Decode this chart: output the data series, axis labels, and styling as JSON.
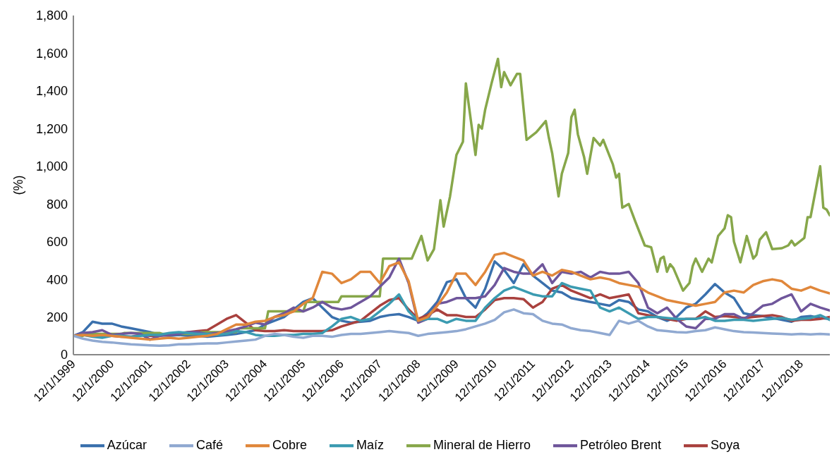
{
  "chart_data": {
    "type": "line",
    "ylabel": "(%)",
    "legend": "bottom",
    "marker": "none",
    "line_style": "solid",
    "xlim": [
      "1999-12",
      "2019-09"
    ],
    "xticks": [
      {
        "value": "1999-12-01",
        "label": "12/1/1999"
      },
      {
        "value": "2000-12-01",
        "label": "12/1/2000"
      },
      {
        "value": "2001-12-01",
        "label": "12/1/2001"
      },
      {
        "value": "2002-12-01",
        "label": "12/1/2002"
      },
      {
        "value": "2003-12-01",
        "label": "12/1/2003"
      },
      {
        "value": "2004-12-01",
        "label": "12/1/2004"
      },
      {
        "value": "2005-12-01",
        "label": "12/1/2005"
      },
      {
        "value": "2006-12-01",
        "label": "12/1/2006"
      },
      {
        "value": "2007-12-01",
        "label": "12/1/2007"
      },
      {
        "value": "2008-12-01",
        "label": "12/1/2008"
      },
      {
        "value": "2009-12-01",
        "label": "12/1/2009"
      },
      {
        "value": "2010-12-01",
        "label": "12/1/2010"
      },
      {
        "value": "2011-12-01",
        "label": "12/1/2011"
      },
      {
        "value": "2012-12-01",
        "label": "12/1/2012"
      },
      {
        "value": "2013-12-01",
        "label": "12/1/2013"
      },
      {
        "value": "2014-12-01",
        "label": "12/1/2014"
      },
      {
        "value": "2015-12-01",
        "label": "12/1/2015"
      },
      {
        "value": "2016-12-01",
        "label": "12/1/2016"
      },
      {
        "value": "2017-12-01",
        "label": "12/1/2017"
      },
      {
        "value": "2018-12-01",
        "label": "12/1/2018"
      }
    ],
    "ylim": [
      0,
      1800
    ],
    "yticks": [
      0,
      200,
      400,
      600,
      800,
      {
        "value": 1000,
        "label": "1,000"
      },
      {
        "value": 1200,
        "label": "1,200"
      },
      {
        "value": 1400,
        "label": "1,400"
      },
      {
        "value": 1600,
        "label": "1,600"
      },
      {
        "value": 1800,
        "label": "1,800"
      }
    ],
    "x": [
      "1999-12",
      "2000-03",
      "2000-06",
      "2000-09",
      "2000-12",
      "2001-03",
      "2001-06",
      "2001-09",
      "2001-12",
      "2002-03",
      "2002-06",
      "2002-09",
      "2002-12",
      "2003-03",
      "2003-06",
      "2003-09",
      "2003-12",
      "2004-03",
      "2004-06",
      "2004-09",
      "2004-12",
      "2005-03",
      "2005-06",
      "2005-09",
      "2005-12",
      "2006-03",
      "2006-06",
      "2006-09",
      "2006-12",
      "2007-03",
      "2007-06",
      "2007-09",
      "2007-12",
      "2008-03",
      "2008-06",
      "2008-09",
      "2008-12",
      "2009-03",
      "2009-06",
      "2009-09",
      "2009-12",
      "2010-03",
      "2010-06",
      "2010-09",
      "2010-12",
      "2011-03",
      "2011-06",
      "2011-09",
      "2011-12",
      "2012-03",
      "2012-06",
      "2012-09",
      "2012-12",
      "2013-03",
      "2013-06",
      "2013-09",
      "2013-12",
      "2014-03",
      "2014-06",
      "2014-09",
      "2014-12",
      "2015-03",
      "2015-06",
      "2015-09",
      "2015-12",
      "2016-03",
      "2016-06",
      "2016-09",
      "2016-12",
      "2017-03",
      "2017-06",
      "2017-09",
      "2017-12",
      "2018-03",
      "2018-06",
      "2018-09",
      "2018-12",
      "2019-03",
      "2019-06",
      "2019-09"
    ],
    "series": [
      {
        "name": "Azúcar",
        "color": "#3a70ad",
        "values": [
          100,
          120,
          175,
          165,
          165,
          150,
          140,
          130,
          120,
          105,
          100,
          105,
          100,
          100,
          95,
          100,
          105,
          110,
          120,
          130,
          160,
          180,
          200,
          240,
          280,
          300,
          250,
          200,
          180,
          170,
          175,
          180,
          200,
          210,
          215,
          200,
          180,
          220,
          280,
          385,
          400,
          300,
          250,
          350,
          495,
          450,
          380,
          480,
          420,
          380,
          340,
          330,
          300,
          290,
          280,
          270,
          260,
          290,
          280,
          240,
          230,
          200,
          180,
          200,
          250,
          270,
          320,
          375,
          330,
          300,
          220,
          210,
          205,
          195,
          185,
          175,
          200,
          205,
          195,
          190
        ]
      },
      {
        "name": "Soya",
        "color": "#a9413e",
        "values": [
          100,
          105,
          110,
          100,
          100,
          95,
          95,
          105,
          100,
          100,
          110,
          115,
          120,
          125,
          130,
          160,
          190,
          210,
          170,
          130,
          125,
          125,
          130,
          125,
          125,
          125,
          125,
          130,
          150,
          165,
          180,
          220,
          260,
          290,
          300,
          240,
          190,
          210,
          240,
          210,
          210,
          200,
          200,
          240,
          290,
          300,
          300,
          295,
          250,
          280,
          350,
          370,
          340,
          320,
          300,
          320,
          300,
          310,
          320,
          220,
          210,
          200,
          190,
          180,
          190,
          190,
          230,
          200,
          205,
          200,
          195,
          200,
          205,
          210,
          200,
          180,
          185,
          185,
          190,
          200
        ]
      },
      {
        "name": "Mineral de Hierro",
        "color": "#87a74a",
        "x": [
          "1999-12",
          "2000-03",
          "2000-04",
          "2001-03",
          "2001-04",
          "2002-03",
          "2002-04",
          "2003-03",
          "2003-04",
          "2004-03",
          "2004-04",
          "2004-12",
          "2005-01",
          "2005-12",
          "2006-01",
          "2006-11",
          "2006-12",
          "2007-12",
          "2008-01",
          "2008-10",
          "2008-12",
          "2009-01",
          "2009-03",
          "2009-05",
          "2009-07",
          "2009-08",
          "2009-10",
          "2009-12",
          "2010-02",
          "2010-03",
          "2010-06",
          "2010-07",
          "2010-08",
          "2010-09",
          "2010-11",
          "2011-01",
          "2011-02",
          "2011-03",
          "2011-05",
          "2011-07",
          "2011-08",
          "2011-10",
          "2012-01",
          "2012-04",
          "2012-05",
          "2012-06",
          "2012-08",
          "2012-09",
          "2012-11",
          "2012-12",
          "2013-01",
          "2013-02",
          "2013-04",
          "2013-05",
          "2013-07",
          "2013-09",
          "2013-10",
          "2014-01",
          "2014-02",
          "2014-03",
          "2014-04",
          "2014-06",
          "2014-08",
          "2014-11",
          "2015-01",
          "2015-03",
          "2015-04",
          "2015-05",
          "2015-06",
          "2015-07",
          "2015-08",
          "2015-11",
          "2016-01",
          "2016-02",
          "2016-03",
          "2016-05",
          "2016-07",
          "2016-08",
          "2016-10",
          "2016-12",
          "2017-01",
          "2017-02",
          "2017-03",
          "2017-05",
          "2017-07",
          "2017-09",
          "2017-10",
          "2017-11",
          "2018-01",
          "2018-03",
          "2018-06",
          "2018-08",
          "2018-09",
          "2018-10",
          "2019-01",
          "2019-02",
          "2019-03",
          "2019-06",
          "2019-07",
          "2019-08",
          "2019-09"
        ],
        "values": [
          100,
          100,
          110,
          110,
          115,
          115,
          110,
          110,
          120,
          120,
          140,
          140,
          230,
          230,
          280,
          280,
          310,
          310,
          510,
          510,
          590,
          630,
          500,
          560,
          820,
          680,
          840,
          1060,
          1130,
          1440,
          1060,
          1220,
          1200,
          1300,
          1440,
          1570,
          1420,
          1500,
          1430,
          1490,
          1490,
          1140,
          1180,
          1240,
          1150,
          1070,
          840,
          960,
          1070,
          1260,
          1300,
          1170,
          1050,
          960,
          1150,
          1110,
          1140,
          1010,
          940,
          960,
          780,
          800,
          710,
          580,
          570,
          440,
          510,
          520,
          440,
          480,
          460,
          340,
          380,
          470,
          510,
          440,
          510,
          490,
          630,
          670,
          740,
          730,
          600,
          490,
          630,
          510,
          530,
          610,
          650,
          560,
          565,
          580,
          605,
          580,
          620,
          730,
          730,
          1000,
          780,
          770,
          740
        ]
      },
      {
        "name": "Petróleo Brent",
        "color": "#6f569b",
        "values": [
          100,
          115,
          120,
          130,
          105,
          110,
          115,
          110,
          80,
          100,
          105,
          110,
          120,
          120,
          110,
          115,
          125,
          135,
          150,
          170,
          160,
          200,
          220,
          250,
          230,
          250,
          280,
          250,
          240,
          250,
          280,
          310,
          360,
          410,
          510,
          380,
          170,
          190,
          270,
          280,
          300,
          300,
          300,
          310,
          370,
          460,
          440,
          430,
          430,
          480,
          380,
          440,
          430,
          440,
          410,
          440,
          430,
          430,
          440,
          380,
          250,
          220,
          250,
          190,
          150,
          140,
          190,
          190,
          215,
          215,
          190,
          220,
          260,
          270,
          300,
          320,
          230,
          270,
          250,
          235
        ]
      },
      {
        "name": "Maíz",
        "color": "#3b9bb1",
        "values": [
          100,
          105,
          95,
          90,
          100,
          100,
          95,
          100,
          105,
          105,
          115,
          120,
          115,
          110,
          110,
          105,
          110,
          125,
          120,
          105,
          100,
          100,
          105,
          105,
          110,
          110,
          115,
          150,
          190,
          200,
          180,
          190,
          230,
          270,
          320,
          230,
          180,
          190,
          190,
          170,
          190,
          180,
          180,
          250,
          300,
          340,
          360,
          340,
          320,
          310,
          310,
          380,
          360,
          350,
          340,
          250,
          230,
          250,
          220,
          190,
          200,
          200,
          195,
          190,
          190,
          190,
          200,
          180,
          180,
          185,
          185,
          180,
          185,
          190,
          195,
          185,
          190,
          195,
          210,
          185
        ]
      },
      {
        "name": "Cobre",
        "color": "#e0873b",
        "values": [
          100,
          105,
          100,
          105,
          100,
          95,
          90,
          85,
          80,
          85,
          90,
          85,
          90,
          95,
          100,
          110,
          135,
          160,
          160,
          175,
          180,
          200,
          210,
          230,
          270,
          300,
          440,
          430,
          380,
          400,
          440,
          440,
          380,
          470,
          490,
          390,
          180,
          200,
          260,
          330,
          430,
          430,
          370,
          440,
          530,
          540,
          520,
          500,
          420,
          440,
          420,
          450,
          440,
          420,
          400,
          410,
          400,
          380,
          370,
          360,
          330,
          310,
          290,
          280,
          270,
          260,
          270,
          280,
          330,
          340,
          330,
          370,
          390,
          400,
          390,
          350,
          340,
          360,
          340,
          325
        ]
      },
      {
        "name": "Café",
        "color": "#90a9d1",
        "values": [
          100,
          85,
          75,
          68,
          65,
          60,
          55,
          52,
          50,
          48,
          50,
          55,
          55,
          58,
          60,
          60,
          65,
          70,
          75,
          80,
          100,
          110,
          105,
          95,
          90,
          100,
          100,
          95,
          105,
          110,
          110,
          115,
          120,
          125,
          120,
          115,
          100,
          110,
          115,
          120,
          125,
          135,
          150,
          165,
          185,
          225,
          240,
          220,
          215,
          180,
          165,
          160,
          140,
          130,
          125,
          115,
          105,
          180,
          165,
          180,
          150,
          130,
          125,
          120,
          118,
          125,
          130,
          145,
          135,
          125,
          120,
          118,
          115,
          112,
          110,
          108,
          110,
          108,
          110,
          108
        ]
      }
    ]
  }
}
